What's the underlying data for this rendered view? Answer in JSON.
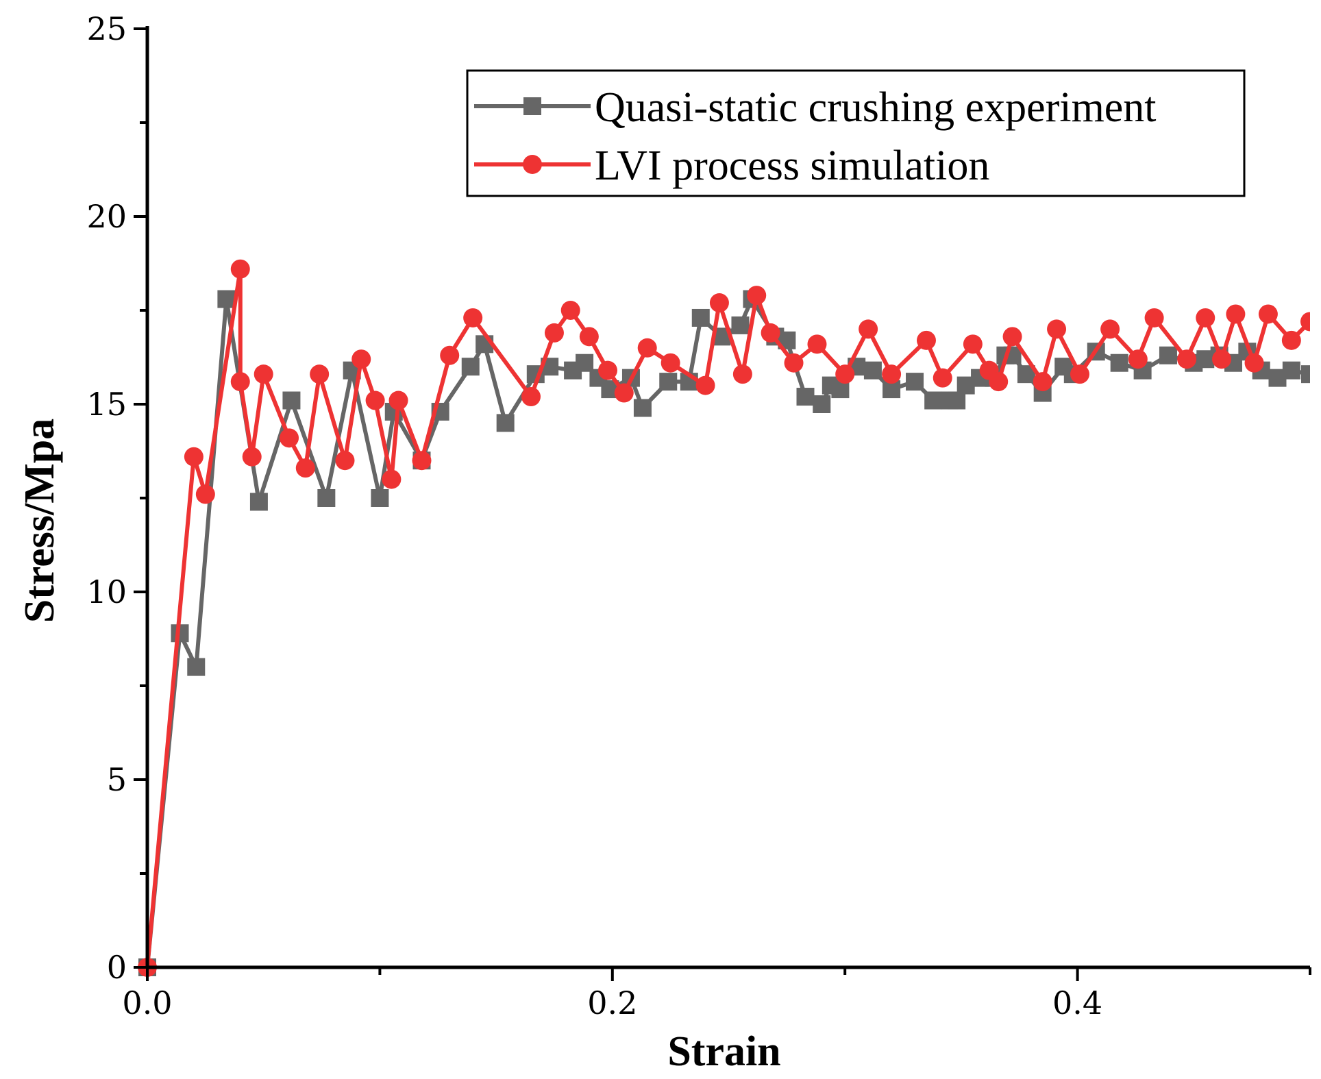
{
  "chart_data": {
    "type": "line",
    "title": "",
    "xlabel": "Strain",
    "ylabel": "Stress/Mpa",
    "xlim": [
      0.0,
      0.5
    ],
    "ylim": [
      0,
      25
    ],
    "x_ticks": [
      0.0,
      0.2,
      0.4
    ],
    "x_tick_labels": [
      "0.0",
      "0.2",
      "0.4"
    ],
    "y_ticks": [
      0,
      5,
      10,
      15,
      20,
      25
    ],
    "y_tick_labels": [
      "0",
      "5",
      "10",
      "15",
      "20",
      "25"
    ],
    "legend_position": "top-right",
    "grid": false,
    "series": [
      {
        "name": "Quasi-static crushing experiment",
        "color": "#666666",
        "marker": "square",
        "x": [
          0.0,
          0.014,
          0.021,
          0.034,
          0.048,
          0.062,
          0.077,
          0.088,
          0.1,
          0.106,
          0.118,
          0.126,
          0.139,
          0.145,
          0.154,
          0.167,
          0.173,
          0.183,
          0.188,
          0.194,
          0.199,
          0.208,
          0.213,
          0.224,
          0.233,
          0.238,
          0.247,
          0.255,
          0.26,
          0.27,
          0.275,
          0.283,
          0.29,
          0.294,
          0.298,
          0.305,
          0.312,
          0.32,
          0.33,
          0.338,
          0.345,
          0.348,
          0.352,
          0.358,
          0.364,
          0.369,
          0.372,
          0.378,
          0.385,
          0.394,
          0.398,
          0.408,
          0.418,
          0.428,
          0.439,
          0.45,
          0.455,
          0.461,
          0.467,
          0.473,
          0.479,
          0.486,
          0.492,
          0.5
        ],
        "y": [
          0.0,
          8.9,
          8.0,
          17.8,
          12.4,
          15.1,
          12.5,
          15.9,
          12.5,
          14.8,
          13.5,
          14.8,
          16.0,
          16.6,
          14.5,
          15.8,
          16.0,
          15.9,
          16.1,
          15.7,
          15.4,
          15.7,
          14.9,
          15.6,
          15.6,
          17.3,
          16.8,
          17.1,
          17.8,
          16.8,
          16.7,
          15.2,
          15.0,
          15.5,
          15.4,
          16.0,
          15.9,
          15.4,
          15.6,
          15.1,
          15.1,
          15.1,
          15.5,
          15.7,
          15.7,
          16.3,
          16.3,
          15.8,
          15.3,
          16.0,
          15.8,
          16.4,
          16.1,
          15.9,
          16.3,
          16.1,
          16.2,
          16.3,
          16.1,
          16.4,
          15.9,
          15.7,
          15.9,
          15.8
        ]
      },
      {
        "name": "LVI process simulation",
        "color": "#ee3333",
        "marker": "circle",
        "x": [
          0.0,
          0.02,
          0.025,
          0.04,
          0.04,
          0.045,
          0.05,
          0.061,
          0.068,
          0.074,
          0.085,
          0.092,
          0.098,
          0.105,
          0.108,
          0.118,
          0.13,
          0.14,
          0.165,
          0.175,
          0.182,
          0.19,
          0.198,
          0.205,
          0.215,
          0.225,
          0.24,
          0.246,
          0.256,
          0.262,
          0.268,
          0.278,
          0.288,
          0.3,
          0.31,
          0.32,
          0.335,
          0.342,
          0.355,
          0.362,
          0.366,
          0.372,
          0.385,
          0.391,
          0.401,
          0.414,
          0.426,
          0.433,
          0.447,
          0.455,
          0.462,
          0.468,
          0.476,
          0.482,
          0.492,
          0.5
        ],
        "y": [
          0.0,
          13.6,
          12.6,
          18.6,
          15.6,
          13.6,
          15.8,
          14.1,
          13.3,
          15.8,
          13.5,
          16.2,
          15.1,
          13.0,
          15.1,
          13.5,
          16.3,
          17.3,
          15.2,
          16.9,
          17.5,
          16.8,
          15.9,
          15.3,
          16.5,
          16.1,
          15.5,
          17.7,
          15.8,
          17.9,
          16.9,
          16.1,
          16.6,
          15.8,
          17.0,
          15.8,
          16.7,
          15.7,
          16.6,
          15.9,
          15.6,
          16.8,
          15.6,
          17.0,
          15.8,
          17.0,
          16.2,
          17.3,
          16.2,
          17.3,
          16.2,
          17.4,
          16.1,
          17.4,
          16.7,
          17.2
        ]
      }
    ]
  }
}
